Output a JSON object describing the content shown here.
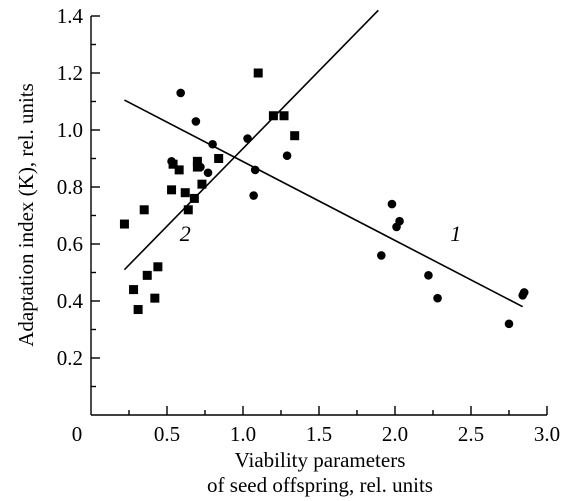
{
  "chart_data": {
    "type": "scatter",
    "title": "",
    "xlabel_line1": "Viability parameters",
    "xlabel_line2": "of seed offspring, rel. units",
    "ylabel": "Adaptation index (K), rel. units",
    "xlim": [
      0,
      3.0
    ],
    "ylim": [
      0,
      1.4
    ],
    "x_ticks": [
      0,
      0.5,
      1.0,
      1.5,
      2.0,
      2.5,
      3.0
    ],
    "x_tick_labels": [
      "0",
      "0.5",
      "1.0",
      "1.5",
      "2.0",
      "2.5",
      "3.0"
    ],
    "y_ticks": [
      0.2,
      0.4,
      0.6,
      0.8,
      1.0,
      1.2,
      1.4
    ],
    "y_tick_labels": [
      "0.2",
      "0.4",
      "0.6",
      "0.8",
      "1.0",
      "1.2",
      "1.4"
    ],
    "grid": false,
    "series": [
      {
        "marker": "circle",
        "points": [
          [
            0.53,
            0.89
          ],
          [
            0.59,
            1.13
          ],
          [
            0.69,
            1.03
          ],
          [
            0.72,
            0.87
          ],
          [
            0.77,
            0.85
          ],
          [
            0.8,
            0.95
          ],
          [
            1.03,
            0.97
          ],
          [
            1.07,
            0.77
          ],
          [
            1.08,
            0.86
          ],
          [
            1.29,
            0.91
          ],
          [
            1.91,
            0.56
          ],
          [
            1.98,
            0.74
          ],
          [
            2.01,
            0.66
          ],
          [
            2.03,
            0.68
          ],
          [
            2.22,
            0.49
          ],
          [
            2.28,
            0.41
          ],
          [
            2.75,
            0.32
          ],
          [
            2.84,
            0.42
          ],
          [
            2.85,
            0.43
          ]
        ],
        "fit": [
          [
            0.22,
            1.105
          ],
          [
            2.84,
            0.38
          ]
        ],
        "fit_label": "1",
        "fit_label_at": [
          2.4,
          0.61
        ]
      },
      {
        "marker": "square",
        "points": [
          [
            0.22,
            0.67
          ],
          [
            0.28,
            0.44
          ],
          [
            0.31,
            0.37
          ],
          [
            0.35,
            0.72
          ],
          [
            0.37,
            0.49
          ],
          [
            0.42,
            0.41
          ],
          [
            0.44,
            0.52
          ],
          [
            0.53,
            0.79
          ],
          [
            0.54,
            0.88
          ],
          [
            0.58,
            0.86
          ],
          [
            0.62,
            0.78
          ],
          [
            0.64,
            0.72
          ],
          [
            0.68,
            0.76
          ],
          [
            0.7,
            0.89
          ],
          [
            0.7,
            0.87
          ],
          [
            0.73,
            0.81
          ],
          [
            0.84,
            0.9
          ],
          [
            1.1,
            1.2
          ],
          [
            1.2,
            1.05
          ],
          [
            1.27,
            1.05
          ],
          [
            1.34,
            0.98
          ]
        ],
        "fit": [
          [
            0.22,
            0.51
          ],
          [
            1.89,
            1.42
          ]
        ],
        "fit_label": "2",
        "fit_label_at": [
          0.62,
          0.61
        ]
      }
    ]
  }
}
